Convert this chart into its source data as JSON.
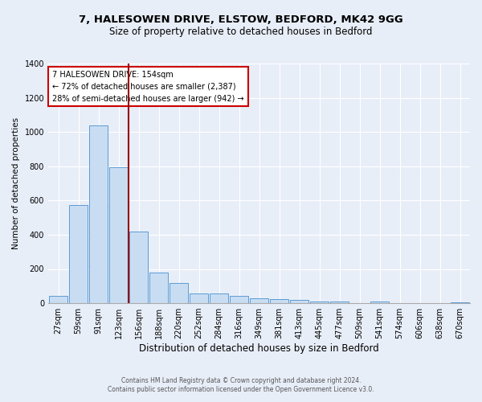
{
  "title1": "7, HALESOWEN DRIVE, ELSTOW, BEDFORD, MK42 9GG",
  "title2": "Size of property relative to detached houses in Bedford",
  "xlabel": "Distribution of detached houses by size in Bedford",
  "ylabel": "Number of detached properties",
  "categories": [
    "27sqm",
    "59sqm",
    "91sqm",
    "123sqm",
    "156sqm",
    "188sqm",
    "220sqm",
    "252sqm",
    "284sqm",
    "316sqm",
    "349sqm",
    "381sqm",
    "413sqm",
    "445sqm",
    "477sqm",
    "509sqm",
    "541sqm",
    "574sqm",
    "606sqm",
    "638sqm",
    "670sqm"
  ],
  "values": [
    45,
    575,
    1040,
    795,
    420,
    180,
    120,
    58,
    55,
    45,
    27,
    23,
    18,
    10,
    12,
    0,
    8,
    0,
    0,
    0,
    3
  ],
  "bar_color": "#c9ddf2",
  "bar_edge_color": "#5b9bd5",
  "vline_color": "#990000",
  "annotation_title": "7 HALESOWEN DRIVE: 154sqm",
  "annotation_line1": "← 72% of detached houses are smaller (2,387)",
  "annotation_line2": "28% of semi-detached houses are larger (942) →",
  "annotation_box_color": "#ffffff",
  "annotation_box_edge": "#cc0000",
  "footer1": "Contains HM Land Registry data © Crown copyright and database right 2024.",
  "footer2": "Contains public sector information licensed under the Open Government Licence v3.0.",
  "bg_color": "#e8eef8",
  "plot_bg_color": "#e8eef8",
  "ylim": [
    0,
    1400
  ],
  "yticks": [
    0,
    200,
    400,
    600,
    800,
    1000,
    1200,
    1400
  ],
  "title1_fontsize": 9.5,
  "title2_fontsize": 8.5,
  "xlabel_fontsize": 8.5,
  "ylabel_fontsize": 7.5,
  "tick_fontsize": 7,
  "footer_fontsize": 5.5
}
